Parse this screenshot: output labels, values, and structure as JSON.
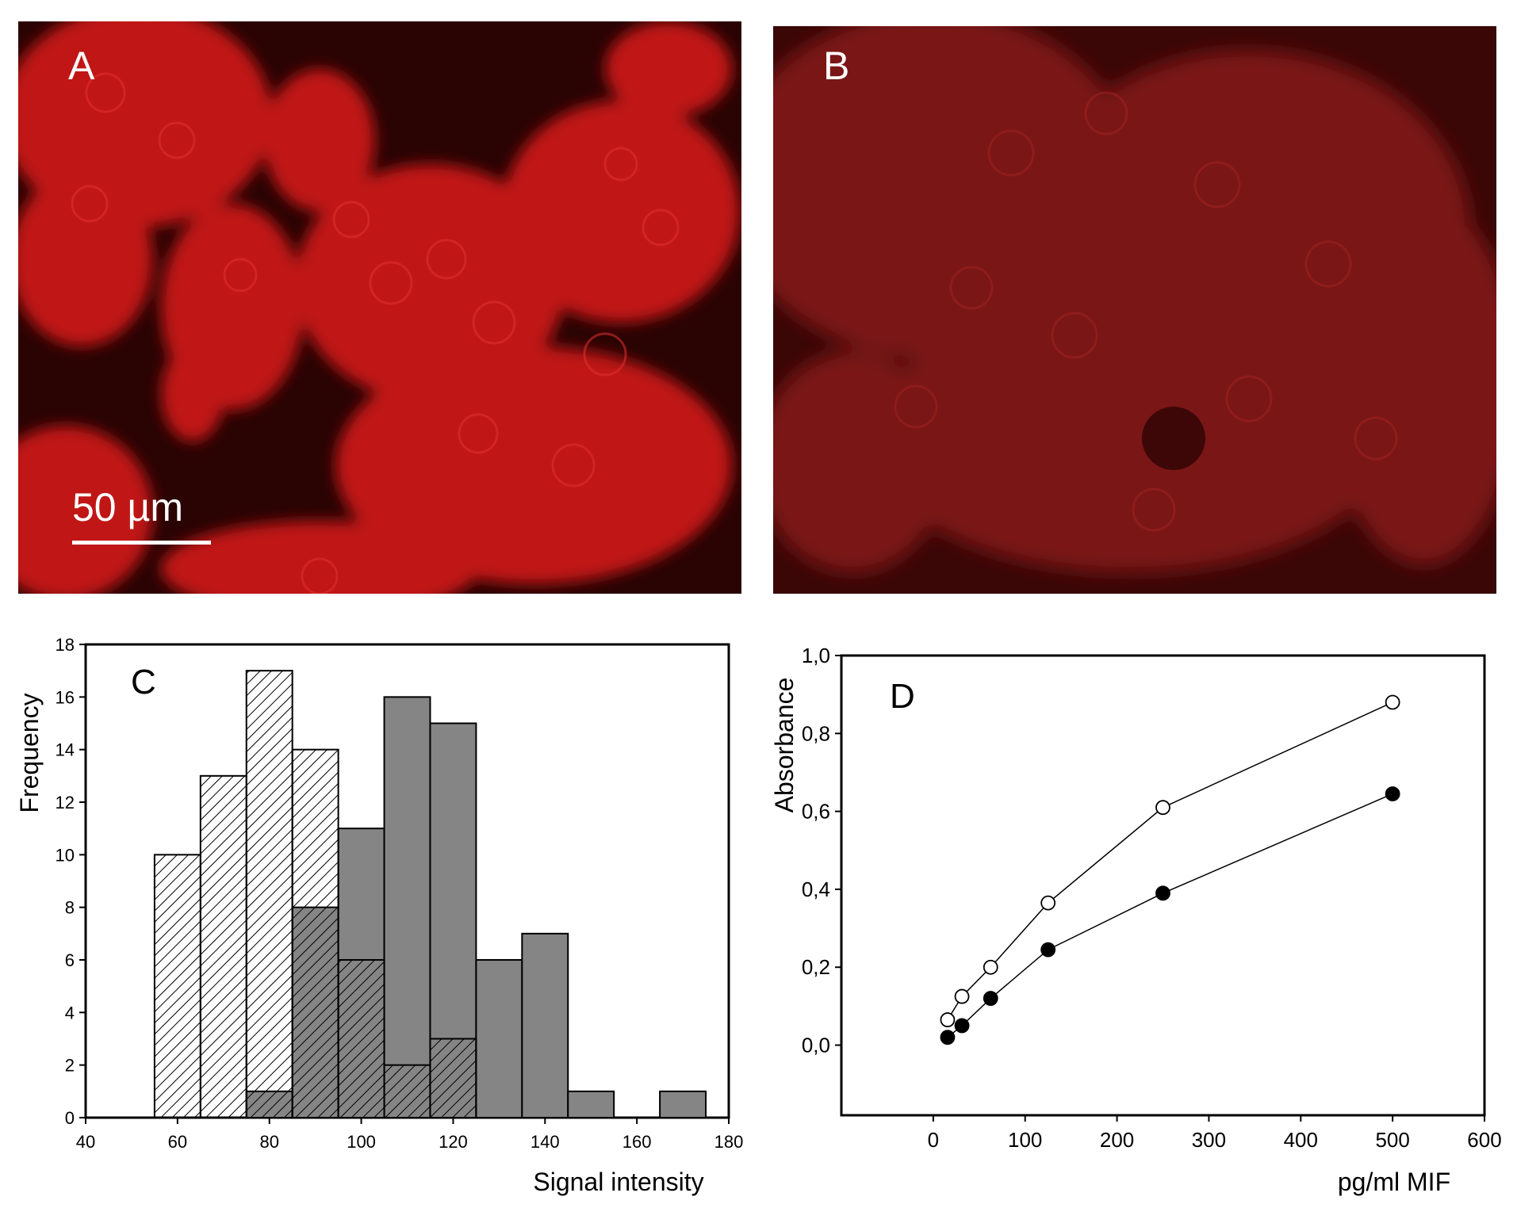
{
  "panels": {
    "a": {
      "label": "A",
      "scale_bar": "50 µm",
      "bg": "#2a0303",
      "cell": "#c81c1c"
    },
    "b": {
      "label": "B",
      "bg": "#3a0606",
      "cell": "#8e1818"
    }
  },
  "chart_data": [
    {
      "type": "bar",
      "panel_label": "C",
      "title": "",
      "xlabel": "Signal intensity",
      "ylabel": "Frequency",
      "xlim": [
        40,
        180
      ],
      "ylim": [
        0,
        18
      ],
      "xticks": [
        40,
        60,
        80,
        100,
        120,
        140,
        160,
        180
      ],
      "yticks": [
        0,
        2,
        4,
        6,
        8,
        10,
        12,
        14,
        16,
        18
      ],
      "bin_width": 10,
      "grid": false,
      "series": [
        {
          "style": "hatched",
          "bins": [
            {
              "center": 60,
              "value": 10
            },
            {
              "center": 70,
              "value": 13
            },
            {
              "center": 80,
              "value": 17
            },
            {
              "center": 90,
              "value": 14
            },
            {
              "center": 100,
              "value": 6
            },
            {
              "center": 110,
              "value": 2
            },
            {
              "center": 120,
              "value": 3
            }
          ]
        },
        {
          "style": "solid-gray",
          "color": "#858585",
          "bins": [
            {
              "center": 80,
              "value": 1
            },
            {
              "center": 90,
              "value": 8
            },
            {
              "center": 100,
              "value": 11
            },
            {
              "center": 110,
              "value": 16
            },
            {
              "center": 120,
              "value": 15
            },
            {
              "center": 130,
              "value": 6
            },
            {
              "center": 140,
              "value": 7
            },
            {
              "center": 150,
              "value": 1
            },
            {
              "center": 170,
              "value": 1
            }
          ]
        }
      ]
    },
    {
      "type": "line",
      "panel_label": "D",
      "title": "",
      "xlabel": "pg/ml MIF",
      "ylabel": "Absorbance",
      "xlim": [
        -100,
        600
      ],
      "ylim": [
        -0.18,
        1.0
      ],
      "xticks": [
        0,
        100,
        200,
        300,
        400,
        500,
        600
      ],
      "yticks": [
        {
          "value": 0.0,
          "label": "0,0"
        },
        {
          "value": 0.2,
          "label": "0,2"
        },
        {
          "value": 0.4,
          "label": "0,4"
        },
        {
          "value": 0.6,
          "label": "0,6"
        },
        {
          "value": 0.8,
          "label": "0,8"
        },
        {
          "value": 1.0,
          "label": "1,0"
        }
      ],
      "grid": false,
      "series": [
        {
          "marker": "open-circle",
          "x": [
            15.6,
            31.25,
            62.5,
            125,
            250,
            500
          ],
          "y": [
            0.065,
            0.125,
            0.2,
            0.365,
            0.61,
            0.88
          ]
        },
        {
          "marker": "filled-circle",
          "x": [
            15.6,
            31.25,
            62.5,
            125,
            250,
            500
          ],
          "y": [
            0.02,
            0.05,
            0.12,
            0.245,
            0.39,
            0.645
          ]
        }
      ]
    }
  ]
}
